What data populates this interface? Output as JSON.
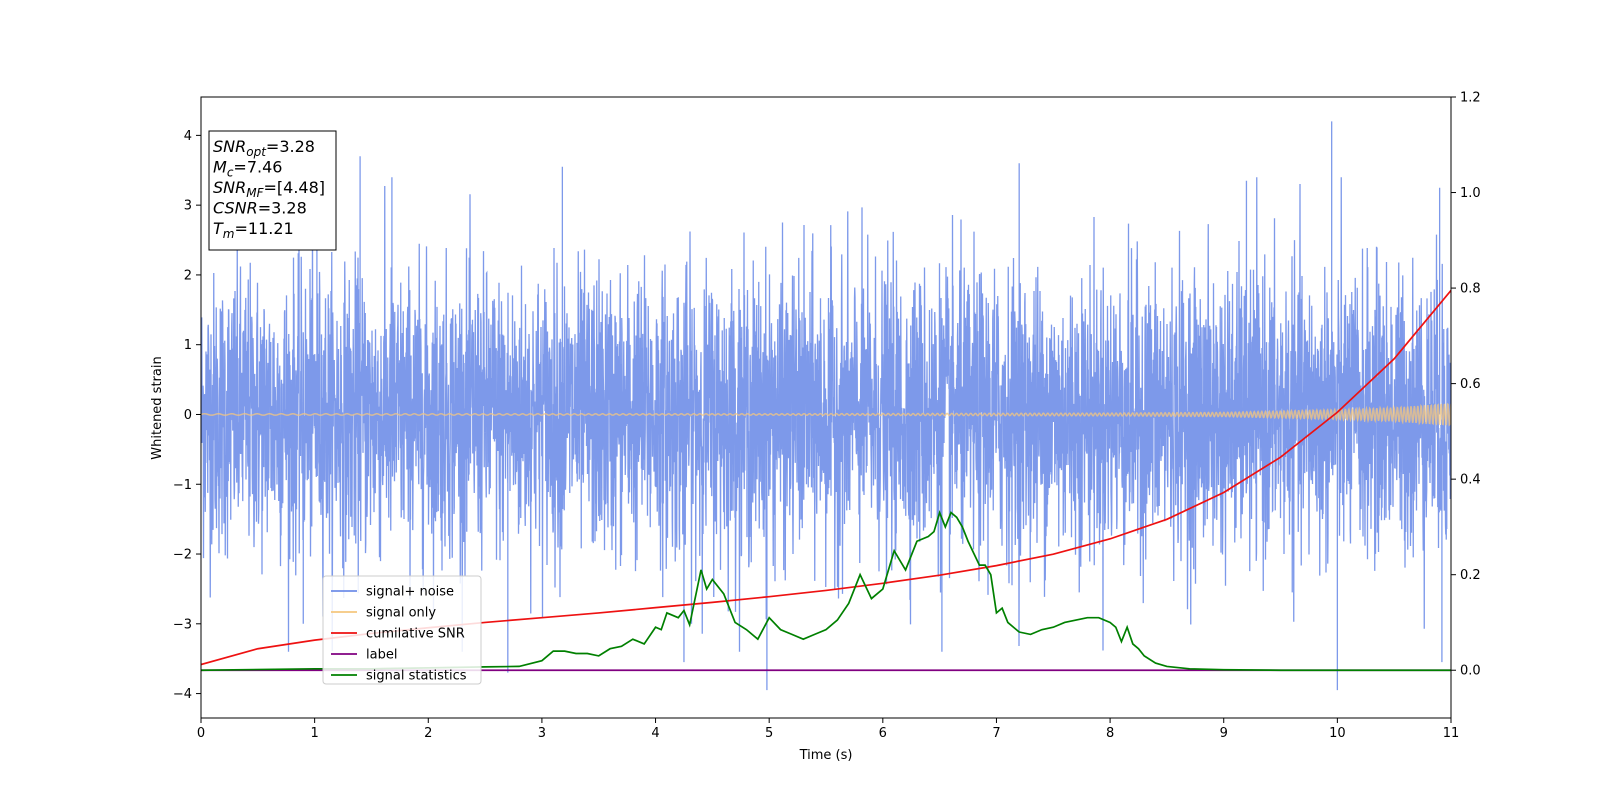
{
  "chart_data": {
    "type": "line",
    "xlabel": "Time (s)",
    "ylabel": "Whitened strain",
    "xlim": [
      0,
      11
    ],
    "ylim": [
      -4.35,
      4.55
    ],
    "y2lim": [
      -0.1,
      1.2
    ],
    "x_ticks": [
      "0",
      "1",
      "2",
      "3",
      "4",
      "5",
      "6",
      "7",
      "8",
      "9",
      "10",
      "11"
    ],
    "y_ticks": [
      "−4",
      "−3",
      "−2",
      "−1",
      "0",
      "1",
      "2",
      "3",
      "4"
    ],
    "y2_ticks": [
      "0.0",
      "0.2",
      "0.4",
      "0.6",
      "0.8",
      "1.0",
      "1.2"
    ],
    "annotation": [
      {
        "base": "SNR",
        "sub": "opt",
        "val": "=3.28"
      },
      {
        "base": "M",
        "sub": "c",
        "val": "=7.46"
      },
      {
        "base": "SNR",
        "sub": "MF",
        "val": "=[4.48]"
      },
      {
        "base": "CSNR",
        "sub": "",
        "val": "=3.28"
      },
      {
        "base": "T",
        "sub": "m",
        "val": "=11.21"
      }
    ],
    "legend": {
      "location": "lower left",
      "entries": [
        {
          "label": "signal+ noise",
          "color": "#6f8ee8"
        },
        {
          "label": "signal only",
          "color": "#f5c77e"
        },
        {
          "label": "cumilative SNR",
          "color": "#ee1111"
        },
        {
          "label": "label",
          "color": "#800080"
        },
        {
          "label": "signal statistics",
          "color": "#008000"
        }
      ]
    },
    "series": [
      {
        "name": "signal+ noise",
        "axis": "left",
        "description_values": "white Gaussian noise, std ≈ 1, peaks to about ±4",
        "noise_std": 1.0,
        "spikes": [
          [
            0.9,
            -3.0
          ],
          [
            1.02,
            3.25
          ],
          [
            1.4,
            3.7
          ],
          [
            1.68,
            3.4
          ],
          [
            2.7,
            -3.7
          ],
          [
            3.18,
            3.55
          ],
          [
            4.25,
            -3.55
          ],
          [
            4.98,
            -3.95
          ],
          [
            6.52,
            -3.4
          ],
          [
            7.2,
            3.6
          ],
          [
            9.2,
            3.35
          ],
          [
            9.95,
            4.2
          ],
          [
            10.0,
            -3.95
          ],
          [
            10.9,
            3.25
          ],
          [
            10.92,
            -3.55
          ]
        ],
        "color": "#6f8ee8"
      },
      {
        "name": "signal only",
        "axis": "left",
        "amplitude": [
          [
            0,
            0.01
          ],
          [
            5,
            0.01
          ],
          [
            8,
            0.02
          ],
          [
            9,
            0.03
          ],
          [
            10,
            0.07
          ],
          [
            10.5,
            0.1
          ],
          [
            11,
            0.16
          ]
        ],
        "color": "#f5c77e"
      },
      {
        "name": "cumilative SNR",
        "axis": "right",
        "x": [
          0,
          0.5,
          1,
          1.5,
          2,
          2.5,
          3,
          3.5,
          4,
          4.5,
          5,
          5.5,
          6,
          6.5,
          7,
          7.5,
          8,
          8.5,
          9,
          9.5,
          10,
          10.5,
          11
        ],
        "y": [
          0.012,
          0.045,
          0.063,
          0.077,
          0.089,
          0.1,
          0.11,
          0.12,
          0.131,
          0.142,
          0.154,
          0.167,
          0.182,
          0.199,
          0.219,
          0.243,
          0.275,
          0.316,
          0.372,
          0.446,
          0.54,
          0.652,
          0.795
        ],
        "color": "#ee1111"
      },
      {
        "name": "label",
        "axis": "right",
        "x": [
          0,
          11
        ],
        "y": [
          0,
          0
        ],
        "color": "#800080"
      },
      {
        "name": "signal statistics",
        "axis": "right",
        "x": [
          0,
          1,
          1.5,
          2,
          2.5,
          2.8,
          3,
          3.1,
          3.2,
          3.3,
          3.4,
          3.5,
          3.6,
          3.7,
          3.8,
          3.9,
          4.0,
          4.05,
          4.1,
          4.2,
          4.25,
          4.3,
          4.4,
          4.45,
          4.5,
          4.6,
          4.7,
          4.8,
          4.9,
          5.0,
          5.1,
          5.2,
          5.3,
          5.4,
          5.5,
          5.6,
          5.7,
          5.8,
          5.9,
          6.0,
          6.1,
          6.2,
          6.3,
          6.4,
          6.45,
          6.5,
          6.55,
          6.6,
          6.65,
          6.7,
          6.75,
          6.8,
          6.85,
          6.9,
          6.95,
          7.0,
          7.05,
          7.1,
          7.15,
          7.2,
          7.3,
          7.4,
          7.5,
          7.6,
          7.7,
          7.8,
          7.9,
          8.0,
          8.05,
          8.1,
          8.15,
          8.2,
          8.25,
          8.3,
          8.4,
          8.5,
          8.7,
          9.0,
          9.5,
          10,
          10.5,
          11
        ],
        "y": [
          0.0,
          0.003,
          0.003,
          0.005,
          0.007,
          0.008,
          0.02,
          0.04,
          0.04,
          0.035,
          0.035,
          0.03,
          0.045,
          0.05,
          0.065,
          0.055,
          0.09,
          0.085,
          0.12,
          0.11,
          0.125,
          0.095,
          0.21,
          0.17,
          0.19,
          0.16,
          0.1,
          0.085,
          0.065,
          0.11,
          0.085,
          0.075,
          0.065,
          0.075,
          0.085,
          0.105,
          0.14,
          0.2,
          0.15,
          0.17,
          0.25,
          0.21,
          0.27,
          0.28,
          0.29,
          0.33,
          0.3,
          0.33,
          0.32,
          0.3,
          0.27,
          0.245,
          0.22,
          0.22,
          0.2,
          0.12,
          0.13,
          0.1,
          0.09,
          0.08,
          0.075,
          0.085,
          0.09,
          0.1,
          0.105,
          0.11,
          0.11,
          0.1,
          0.09,
          0.06,
          0.09,
          0.055,
          0.045,
          0.03,
          0.015,
          0.008,
          0.003,
          0.001,
          0.0,
          0.0,
          0.0,
          0.0
        ],
        "color": "#008000"
      }
    ]
  }
}
